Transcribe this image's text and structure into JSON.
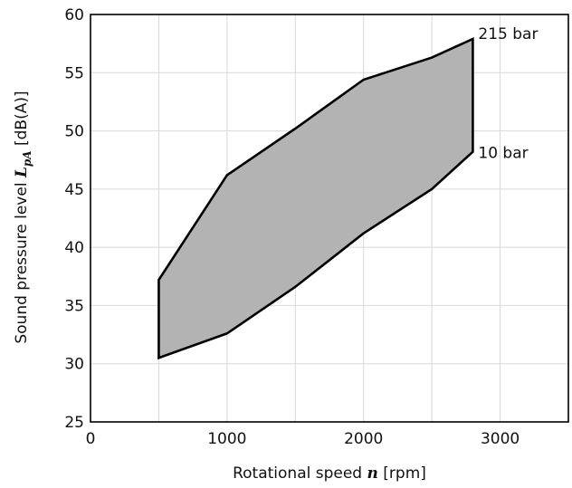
{
  "chart_data": {
    "type": "area",
    "xlabel": {
      "pre": "Rotational speed ",
      "var": "n",
      "post": " [rpm]"
    },
    "ylabel": {
      "pre": "Sound pressure level ",
      "var": "L",
      "sub": "pA",
      "post": " [dB(A)]"
    },
    "xlim": [
      0,
      3500
    ],
    "ylim": [
      25,
      60
    ],
    "xticks": [
      0,
      1000,
      2000,
      3000
    ],
    "yticks": [
      25,
      30,
      35,
      40,
      45,
      50,
      55,
      60
    ],
    "grid": true,
    "series": [
      {
        "name": "215 bar",
        "x": [
          500,
          1000,
          1500,
          2000,
          2500,
          2800
        ],
        "y": [
          37.2,
          46.2,
          50.2,
          54.4,
          56.3,
          57.9
        ]
      },
      {
        "name": "10 bar",
        "x": [
          500,
          1000,
          1500,
          2000,
          2500,
          2800
        ],
        "y": [
          30.5,
          32.6,
          36.6,
          41.2,
          45.0,
          48.2
        ]
      }
    ]
  }
}
